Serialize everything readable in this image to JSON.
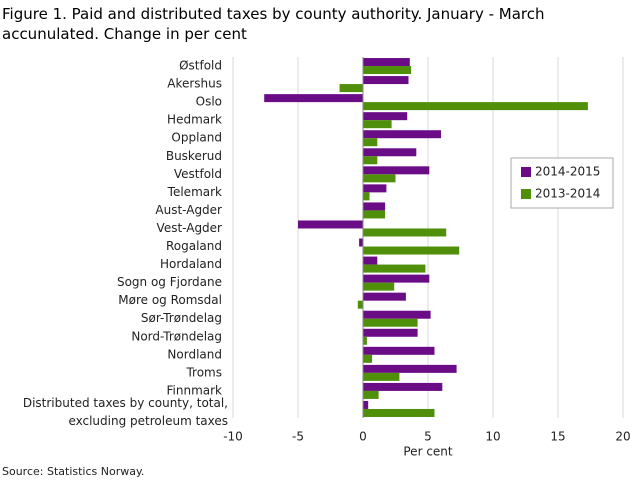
{
  "chart_data": {
    "type": "hbar",
    "title": "Figure 1. Paid and distributed taxes by county authority. January - March accunulated. Change in per cent",
    "x_label": "Per cent",
    "source": "Source: Statistics Norway.",
    "categories": [
      "Østfold",
      "Akershus",
      "Oslo",
      "Hedmark",
      "Oppland",
      "Buskerud",
      "Vestfold",
      "Telemark",
      "Aust-Agder",
      "Vest-Agder",
      "Rogaland",
      "Hordaland",
      "Sogn og Fjordane",
      "Møre og Romsdal",
      "Sør-Trøndelag",
      "Nord-Trøndelag",
      "Nordland",
      "Troms",
      "Finnmark",
      "Distributed taxes by county, total, excluding petroleum taxes"
    ],
    "series": [
      {
        "name": "2014-2015",
        "color": "#6b0c87",
        "values": [
          3.6,
          3.5,
          -7.6,
          3.4,
          6.0,
          4.1,
          5.1,
          1.8,
          1.7,
          -5.0,
          -0.3,
          1.1,
          5.1,
          3.3,
          5.2,
          4.2,
          5.5,
          7.2,
          6.1,
          0.4
        ]
      },
      {
        "name": "2013-2014",
        "color": "#4f8f0a",
        "values": [
          3.7,
          -1.8,
          17.3,
          2.2,
          1.1,
          1.1,
          2.5,
          0.5,
          1.7,
          6.4,
          7.4,
          4.8,
          2.4,
          -0.4,
          4.2,
          0.3,
          0.7,
          2.8,
          1.2,
          5.5
        ]
      }
    ],
    "xlim": [
      -10,
      20
    ],
    "xticks": [
      -10,
      -5,
      0,
      5,
      10,
      15,
      20
    ],
    "grid": true,
    "legend": "right"
  }
}
